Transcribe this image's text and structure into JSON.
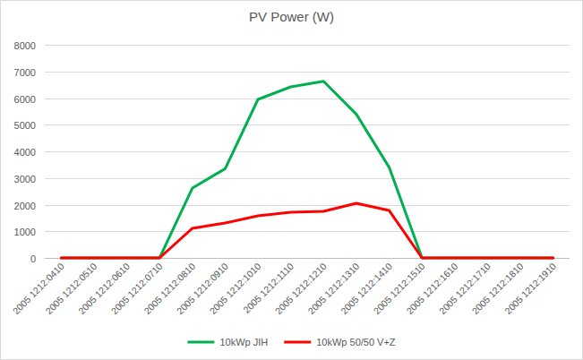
{
  "chart_data": {
    "type": "line",
    "title": "PV Power (W)",
    "categories": [
      "2005 1212:0410",
      "2005 1212:0510",
      "2005 1212:0610",
      "2005 1212:0710",
      "2005 1212:0810",
      "2005 1212:0910",
      "2005 1212:1010",
      "2005 1212:1110",
      "2005 1212:1210",
      "2005 1212:1310",
      "2005 1212:1410",
      "2005 1212:1510",
      "2005 1212:1610",
      "2005 1212:1710",
      "2005 1212:1810",
      "2005 1212:1910"
    ],
    "series": [
      {
        "name": "10kWp JIH",
        "color": "#00b050",
        "values": [
          0,
          0,
          0,
          0,
          2620,
          3350,
          5950,
          6420,
          6630,
          5390,
          3400,
          0,
          0,
          0,
          0,
          0
        ]
      },
      {
        "name": "10kWp 50/50 V+Z",
        "color": "#ff0000",
        "values": [
          0,
          0,
          0,
          0,
          1110,
          1310,
          1580,
          1715,
          1750,
          2050,
          1780,
          0,
          0,
          0,
          0,
          0
        ]
      }
    ],
    "ylim": [
      0,
      8000
    ],
    "yticks": [
      0,
      1000,
      2000,
      3000,
      4000,
      5000,
      6000,
      7000,
      8000
    ],
    "grid": true,
    "legend": "bottom"
  }
}
